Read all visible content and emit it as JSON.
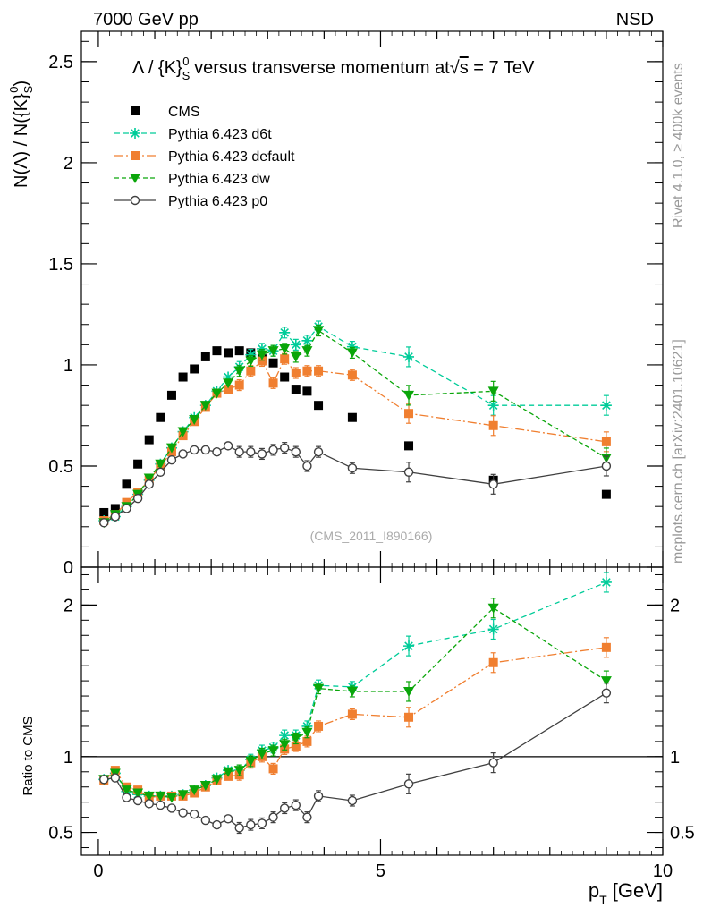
{
  "header": {
    "left": "7000 GeV pp",
    "right": "NSD",
    "watermark": "(CMS_2011_I890166)",
    "side_note_top": "Rivet 4.1.0, ≥ 400k events",
    "side_note_bottom": "mcplots.cern.ch [arXiv:2401.10621]"
  },
  "chart_data": [
    {
      "type": "scatter",
      "title": "Λ / {K}S0 versus transverse momentum at √s = 7 TeV",
      "title_parts": {
        "a": "Λ / {K}",
        "sub": "S",
        "sup": "0",
        "b": " versus transverse momentum at",
        "sqrt_arg": "s",
        "c": " = 7 TeV"
      },
      "ylabel": "N(Λ)  /  N({K}S0)",
      "ylabel_parts": {
        "a": "N(Λ)  /  N({K}",
        "sub": "S",
        "sup": "0",
        "b": ")"
      },
      "xlim": [
        -0.3,
        10
      ],
      "ylim": [
        0,
        2.65
      ],
      "yticks": [
        "0",
        "0.5",
        "1",
        "1.5",
        "2",
        "2.5"
      ],
      "x": [
        0.1,
        0.3,
        0.5,
        0.7,
        0.9,
        1.1,
        1.3,
        1.5,
        1.7,
        1.9,
        2.1,
        2.3,
        2.5,
        2.7,
        2.9,
        3.1,
        3.3,
        3.5,
        3.7,
        3.9,
        4.5,
        5.5,
        7.0,
        9.0
      ],
      "series": [
        {
          "name": "CMS",
          "color": "#000000",
          "marker": "square",
          "values": [
            0.27,
            0.29,
            0.41,
            0.51,
            0.63,
            0.74,
            0.85,
            0.94,
            0.98,
            1.04,
            1.07,
            1.06,
            1.07,
            1.06,
            1.03,
            1.01,
            0.94,
            0.88,
            0.87,
            0.8,
            0.74,
            0.6,
            0.43,
            0.36
          ]
        },
        {
          "name": "Pythia 6.423 d6t",
          "color": "#00cc99",
          "marker": "star",
          "dash": "6,4",
          "values": [
            0.23,
            0.25,
            0.3,
            0.36,
            0.43,
            0.51,
            0.59,
            0.67,
            0.74,
            0.8,
            0.87,
            0.94,
            0.99,
            1.05,
            1.08,
            1.07,
            1.16,
            1.1,
            1.12,
            1.19,
            1.09,
            1.04,
            0.8,
            0.8
          ]
        },
        {
          "name": "Pythia 6.423 default",
          "color": "#f07f30",
          "marker": "square",
          "dash": "10,3,2,3",
          "values": [
            0.23,
            0.26,
            0.32,
            0.37,
            0.43,
            0.5,
            0.57,
            0.65,
            0.72,
            0.79,
            0.86,
            0.88,
            0.9,
            0.97,
            1.02,
            0.91,
            1.03,
            0.96,
            0.97,
            0.97,
            0.95,
            0.76,
            0.7,
            0.62
          ]
        },
        {
          "name": "Pythia 6.423 dw",
          "color": "#0aa60a",
          "marker": "triangle-down",
          "dash": "5,3",
          "values": [
            0.22,
            0.26,
            0.3,
            0.36,
            0.44,
            0.51,
            0.59,
            0.67,
            0.73,
            0.8,
            0.86,
            0.91,
            0.97,
            1.02,
            1.05,
            1.07,
            1.08,
            1.04,
            1.07,
            1.17,
            1.06,
            0.85,
            0.87,
            0.54
          ]
        },
        {
          "name": "Pythia 6.423 p0",
          "color": "#404040",
          "marker": "open-circle",
          "dash": "",
          "values": [
            0.22,
            0.25,
            0.29,
            0.34,
            0.41,
            0.47,
            0.53,
            0.56,
            0.58,
            0.58,
            0.57,
            0.6,
            0.57,
            0.57,
            0.56,
            0.58,
            0.59,
            0.57,
            0.5,
            0.57,
            0.49,
            0.47,
            0.41,
            0.5
          ]
        }
      ],
      "legend": {
        "placement": "top-left"
      }
    },
    {
      "type": "scatter",
      "ylabel": "Ratio to CMS",
      "xlabel": "pT [GeV]",
      "xlabel_parts": {
        "a": "p",
        "sub": "T",
        "b": " [GeV]"
      },
      "xlim": [
        -0.3,
        10
      ],
      "ylim": [
        0.35,
        2.25
      ],
      "reference_line": 1,
      "yticks": [
        "0.5",
        "1",
        "2"
      ],
      "xticks": [
        "0",
        "5",
        "10"
      ],
      "x": [
        0.1,
        0.3,
        0.5,
        0.7,
        0.9,
        1.1,
        1.3,
        1.5,
        1.7,
        1.9,
        2.1,
        2.3,
        2.5,
        2.7,
        2.9,
        3.1,
        3.3,
        3.5,
        3.7,
        3.9,
        4.5,
        5.5,
        7.0,
        9.0
      ],
      "series": [
        {
          "name": "Pythia 6.423 d6t",
          "color": "#00cc99",
          "marker": "star",
          "dash": "6,4",
          "values": [
            0.85,
            0.89,
            0.77,
            0.75,
            0.74,
            0.74,
            0.74,
            0.75,
            0.78,
            0.81,
            0.86,
            0.91,
            0.91,
            0.98,
            1.04,
            1.06,
            1.14,
            1.14,
            1.2,
            1.47,
            1.46,
            1.73,
            1.84,
            2.15
          ]
        },
        {
          "name": "Pythia 6.423 default",
          "color": "#f07f30",
          "marker": "square",
          "dash": "10,3,2,3",
          "values": [
            0.84,
            0.91,
            0.8,
            0.78,
            0.73,
            0.74,
            0.74,
            0.74,
            0.76,
            0.8,
            0.84,
            0.87,
            0.88,
            0.96,
            1.0,
            0.92,
            1.05,
            1.07,
            1.1,
            1.2,
            1.28,
            1.26,
            1.62,
            1.72
          ]
        },
        {
          "name": "Pythia 6.423 dw",
          "color": "#0aa60a",
          "marker": "triangle-down",
          "dash": "5,3",
          "values": [
            0.85,
            0.89,
            0.78,
            0.76,
            0.74,
            0.74,
            0.73,
            0.75,
            0.78,
            0.81,
            0.85,
            0.9,
            0.91,
            0.97,
            1.02,
            1.04,
            1.08,
            1.12,
            1.16,
            1.45,
            1.43,
            1.43,
            1.98,
            1.5
          ]
        },
        {
          "name": "Pythia 6.423 p0",
          "color": "#404040",
          "marker": "open-circle",
          "dash": "",
          "values": [
            0.85,
            0.86,
            0.73,
            0.71,
            0.69,
            0.68,
            0.66,
            0.63,
            0.62,
            0.58,
            0.55,
            0.59,
            0.53,
            0.55,
            0.56,
            0.6,
            0.66,
            0.68,
            0.6,
            0.74,
            0.71,
            0.82,
            0.96,
            1.42
          ]
        }
      ]
    }
  ]
}
